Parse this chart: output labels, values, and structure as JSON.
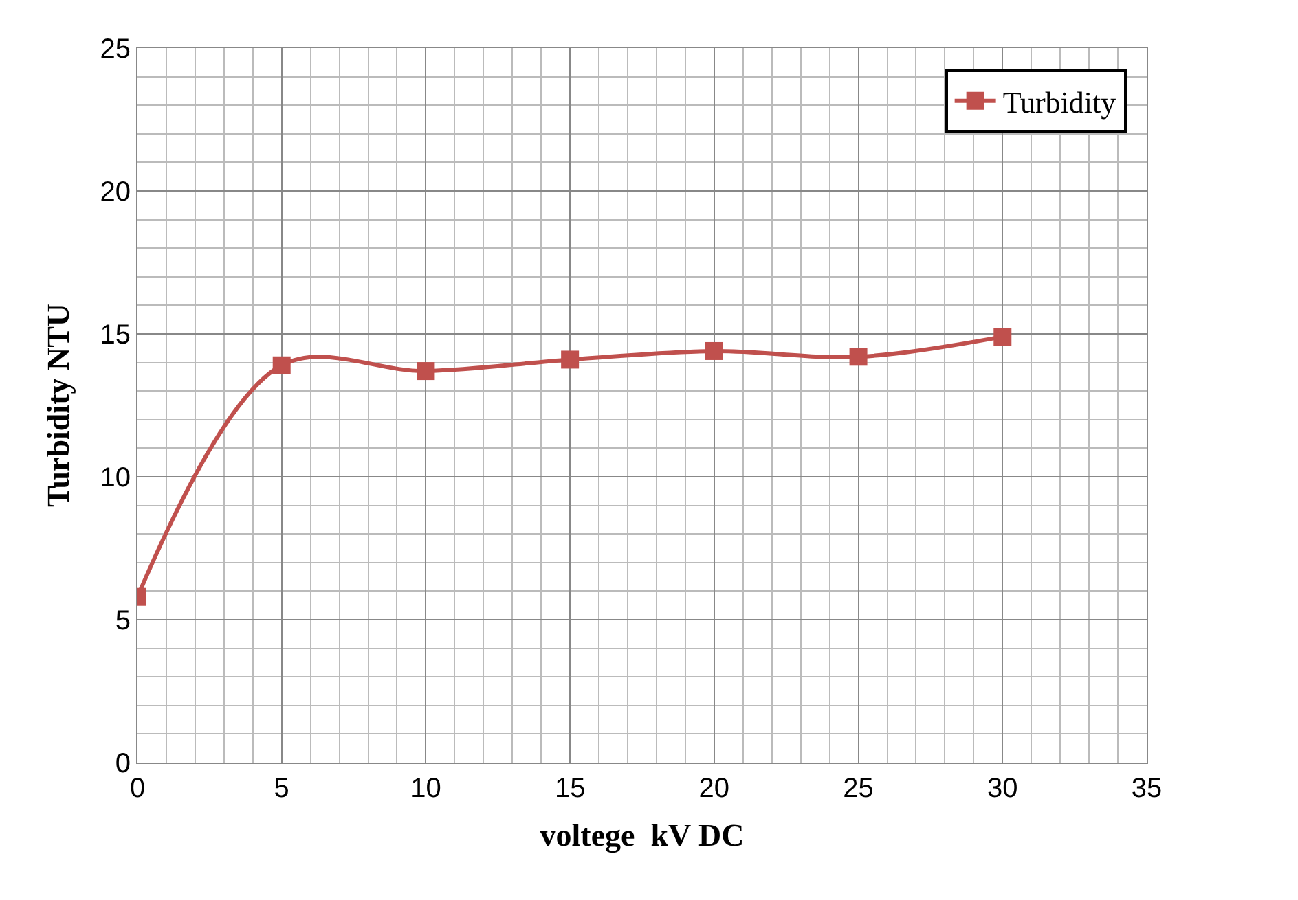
{
  "chart_data": {
    "type": "line",
    "xlabel": "voltege  kV DC",
    "ylabel": "Turbidity NTU",
    "x": [
      0,
      5,
      10,
      15,
      20,
      25,
      30
    ],
    "series": [
      {
        "name": "Turbidity",
        "color": "#c0504d",
        "values": [
          5.8,
          13.9,
          13.7,
          14.1,
          14.4,
          14.2,
          14.9
        ]
      }
    ],
    "xlim": [
      0,
      35
    ],
    "xticks": [
      0,
      5,
      10,
      15,
      20,
      25,
      30,
      35
    ],
    "ylim": [
      0,
      25
    ],
    "yticks": [
      0,
      5,
      10,
      15,
      20,
      25
    ],
    "grid": true,
    "legend": "top right",
    "marker": "square",
    "line_style": "solid"
  }
}
